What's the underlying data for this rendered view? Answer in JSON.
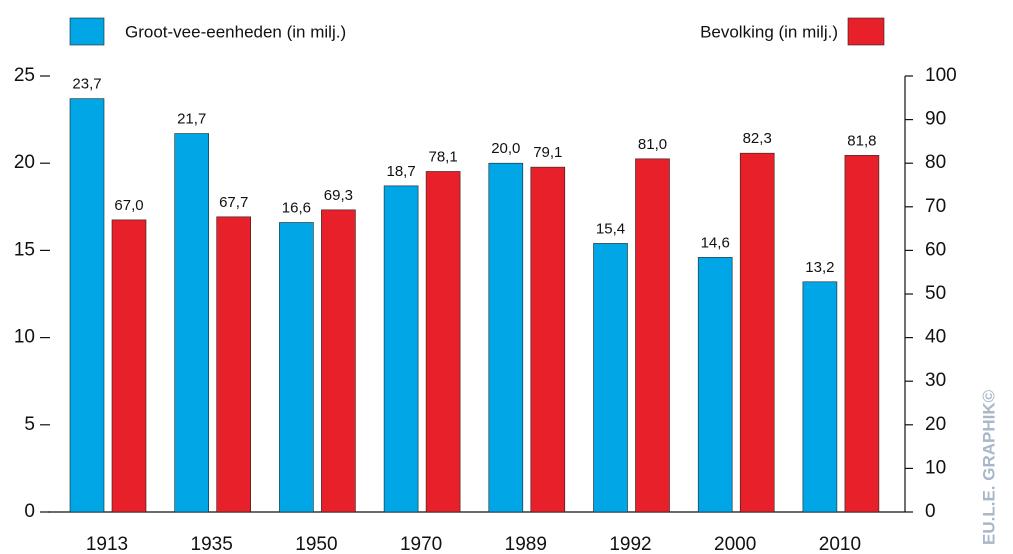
{
  "chart_data": {
    "type": "bar",
    "categories": [
      "1913",
      "1935",
      "1950",
      "1970",
      "1989",
      "1992",
      "2000",
      "2010"
    ],
    "series": [
      {
        "name": "Groot-vee-eenheden (in milj.)",
        "color": "#00a6e6",
        "axis": "y",
        "values": [
          23.7,
          21.7,
          16.6,
          18.7,
          20.0,
          15.4,
          14.6,
          13.2
        ],
        "value_labels": [
          "23,7",
          "21,7",
          "16,6",
          "18,7",
          "20,0",
          "15,4",
          "14,6",
          "13,2"
        ]
      },
      {
        "name": "Bevolking (in milj.)",
        "color": "#e8202a",
        "axis": "y2",
        "values": [
          67.0,
          67.7,
          69.3,
          78.1,
          79.1,
          81.0,
          82.3,
          81.8
        ],
        "value_labels": [
          "67,0",
          "67,7",
          "69,3",
          "78,1",
          "79,1",
          "81,0",
          "82,3",
          "81,8"
        ]
      }
    ],
    "ylim": [
      0,
      25
    ],
    "yticks": [
      0,
      5,
      10,
      15,
      20,
      25
    ],
    "y2lim": [
      0,
      100
    ],
    "y2ticks": [
      0,
      10,
      20,
      30,
      40,
      50,
      60,
      70,
      80,
      90,
      100
    ],
    "watermark": "EU.L.E. GRAPHIK©"
  }
}
